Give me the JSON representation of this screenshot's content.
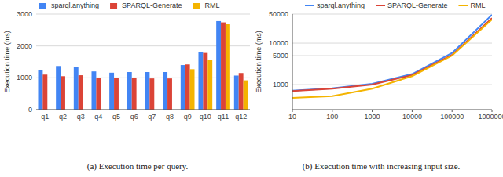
{
  "chart_data": [
    {
      "type": "bar",
      "title": "(a) Execution time per query.",
      "y_label": "Execution time (ms)",
      "categories": [
        "q1",
        "q2",
        "q3",
        "q4",
        "q5",
        "q6",
        "q7",
        "q8",
        "q9",
        "q10",
        "q11",
        "q12"
      ],
      "series": [
        {
          "name": "sparql.anything",
          "color": "#4285f4",
          "values": [
            1250,
            1370,
            1350,
            1200,
            1160,
            1180,
            1180,
            1180,
            1400,
            1820,
            2780,
            1070
          ]
        },
        {
          "name": "SPARQL-Generate",
          "color": "#db4437",
          "values": [
            1100,
            1050,
            1080,
            990,
            1000,
            1000,
            980,
            980,
            1420,
            1780,
            2740,
            1150
          ]
        },
        {
          "name": "RML",
          "color": "#f4b400",
          "values": [
            null,
            null,
            null,
            null,
            null,
            null,
            null,
            null,
            1270,
            1550,
            2680,
            920
          ]
        }
      ],
      "ylim": [
        0,
        3000
      ],
      "yticks": [
        0,
        1000,
        2000,
        3000
      ],
      "grid": true,
      "legend": "top"
    },
    {
      "type": "line",
      "title": "(b) Execution time with increasing input size.",
      "y_label": "Execution time (ms)",
      "x": [
        10,
        100,
        1000,
        10000,
        100000,
        1000000
      ],
      "series": [
        {
          "name": "sparql.anything",
          "color": "#4285f4",
          "values": [
            720,
            820,
            1050,
            1800,
            5800,
            48000
          ]
        },
        {
          "name": "SPARQL-Generate",
          "color": "#db4437",
          "values": [
            700,
            800,
            1000,
            1700,
            5200,
            40000
          ]
        },
        {
          "name": "RML",
          "color": "#f4b400",
          "values": [
            480,
            530,
            800,
            1600,
            5000,
            37000
          ]
        }
      ],
      "xlim": [
        10,
        1000000
      ],
      "xticks": [
        10,
        100,
        1000,
        10000,
        100000,
        1000000
      ],
      "ylim": [
        250,
        50000
      ],
      "yticks": [
        1000,
        5000,
        10000,
        50000
      ],
      "log": true,
      "grid": true,
      "legend": "top"
    }
  ]
}
